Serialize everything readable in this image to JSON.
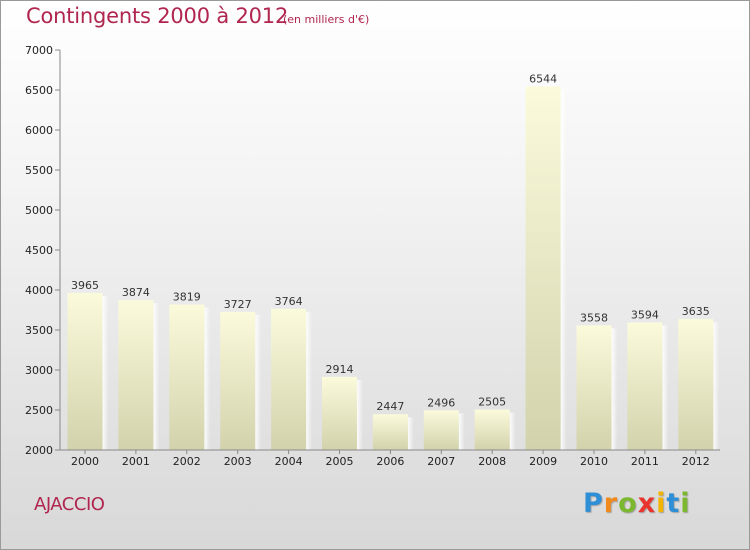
{
  "header": {
    "title": "Contingents 2000 à 2012",
    "subtitle": "(en milliers d'€)"
  },
  "footer": {
    "place": "AJACCIO",
    "logo": {
      "letters": [
        "P",
        "r",
        "o",
        "x",
        "i",
        "t",
        "i"
      ],
      "colors": [
        "#2e8fd6",
        "#f08a1c",
        "#7cb82f",
        "#e8342c",
        "#f3b400",
        "#2e8fd6",
        "#7cb82f"
      ]
    }
  },
  "colors": {
    "title": "#b0264f",
    "bar_top": "#fbfbdc",
    "bar_bottom": "#d2d2ac"
  },
  "chart_data": {
    "type": "bar",
    "title": "Contingents 2000 à 2012",
    "categories": [
      "2000",
      "2001",
      "2002",
      "2003",
      "2004",
      "2005",
      "2006",
      "2007",
      "2008",
      "2009",
      "2010",
      "2011",
      "2012"
    ],
    "values": [
      3965,
      3874,
      3819,
      3727,
      3764,
      2914,
      2447,
      2496,
      2505,
      6544,
      3558,
      3594,
      3635
    ],
    "ylim": [
      2000,
      7000
    ],
    "yticks": [
      2000,
      2500,
      3000,
      3500,
      4000,
      4500,
      5000,
      5500,
      6000,
      6500,
      7000
    ],
    "xlabel": "",
    "ylabel": "",
    "grid": false,
    "legend": "none"
  }
}
